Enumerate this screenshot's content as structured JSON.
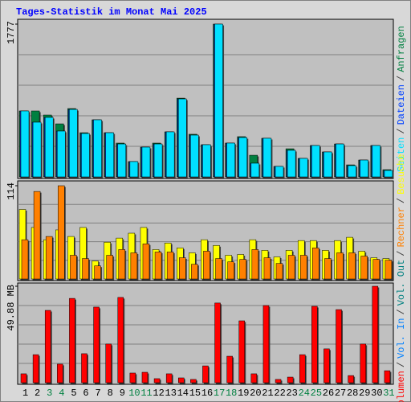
{
  "chart_data": [
    {
      "type": "bar",
      "title": "Tages-Statistik im Monat Mai 2025",
      "legend_separator": "/",
      "ylim": [
        0,
        1777
      ],
      "yticks": [
        1777
      ],
      "series": [
        {
          "name": "Anfragen",
          "color": "#008040",
          "values": [
            767,
            767,
            720,
            617,
            795,
            514,
            664,
            514,
            393,
            178,
            346,
            393,
            524,
            916,
            496,
            374,
            1777,
            393,
            468,
            252,
            449,
            122,
            327,
            215,
            365,
            290,
            383,
            140,
            196,
            365,
            84
          ]
        },
        {
          "name": "Dateien",
          "color": "#0040ff",
          "values": [
            767,
            636,
            692,
            533,
            785,
            505,
            664,
            514,
            383,
            178,
            346,
            383,
            524,
            907,
            486,
            374,
            1777,
            393,
            458,
            159,
            449,
            122,
            309,
            215,
            365,
            290,
            383,
            131,
            196,
            365,
            75
          ]
        },
        {
          "name": "Seiten",
          "color": "#00e0ff",
          "values": [
            767,
            636,
            692,
            533,
            785,
            505,
            664,
            514,
            383,
            178,
            346,
            383,
            524,
            907,
            486,
            374,
            1777,
            393,
            458,
            159,
            449,
            122,
            309,
            215,
            365,
            290,
            383,
            131,
            196,
            365,
            75
          ]
        }
      ]
    },
    {
      "type": "bar",
      "ylim": [
        0,
        114
      ],
      "yticks": [
        114
      ],
      "series": [
        {
          "name": "Besuche",
          "color": "#ffff00",
          "values": [
            85,
            63,
            48,
            60,
            52,
            63,
            22,
            45,
            50,
            56,
            63,
            36,
            44,
            38,
            32,
            48,
            41,
            29,
            30,
            48,
            35,
            27,
            35,
            47,
            47,
            35,
            47,
            51,
            34,
            26,
            25
          ]
        },
        {
          "name": "Rechner",
          "color": "#ff8000",
          "values": [
            48,
            107,
            52,
            114,
            29,
            25,
            16,
            29,
            36,
            32,
            43,
            33,
            33,
            26,
            18,
            34,
            25,
            21,
            24,
            36,
            26,
            19,
            29,
            29,
            38,
            25,
            32,
            32,
            28,
            24,
            23
          ]
        }
      ]
    },
    {
      "type": "bar",
      "ylim": [
        0,
        49.88
      ],
      "yticks": [
        {
          "value": 49.88,
          "label": "49.88 MB"
        }
      ],
      "categories": [
        "1",
        "2",
        "3",
        "4",
        "5",
        "6",
        "7",
        "8",
        "9",
        "10",
        "11",
        "12",
        "13",
        "14",
        "15",
        "16",
        "17",
        "18",
        "19",
        "20",
        "21",
        "22",
        "23",
        "24",
        "25",
        "26",
        "27",
        "28",
        "29",
        "30",
        "31"
      ],
      "category_colors": [
        "#000000",
        "#000000",
        "#008040",
        "#008040",
        "#000000",
        "#000000",
        "#000000",
        "#000000",
        "#000000",
        "#008040",
        "#008040",
        "#000000",
        "#000000",
        "#000000",
        "#000000",
        "#000000",
        "#008040",
        "#008040",
        "#000000",
        "#000000",
        "#000000",
        "#000000",
        "#000000",
        "#008040",
        "#008040",
        "#000000",
        "#000000",
        "#000000",
        "#000000",
        "#000000",
        "#008040"
      ],
      "series": [
        {
          "name": "Volumen",
          "color": "#ff0000",
          "values": [
            4.6,
            14.5,
            37.4,
            9.6,
            43.6,
            15.0,
            39.1,
            20.0,
            44.1,
            5.0,
            5.4,
            2.1,
            4.6,
            2.5,
            1.7,
            8.7,
            41.2,
            13.7,
            32.0,
            4.6,
            39.9,
            1.7,
            2.9,
            14.5,
            39.5,
            17.5,
            37.8,
            3.7,
            20.0,
            49.88,
            6.2
          ]
        },
        {
          "name": "Vol. In",
          "color": "#0080ff",
          "values": [
            null,
            null,
            null,
            null,
            null,
            null,
            null,
            null,
            null,
            null,
            null,
            null,
            null,
            null,
            null,
            null,
            null,
            null,
            null,
            null,
            null,
            null,
            null,
            null,
            null,
            null,
            null,
            null,
            null,
            null,
            null
          ]
        },
        {
          "name": "Vol. Out",
          "color": "#008080",
          "values": [
            null,
            null,
            null,
            null,
            null,
            null,
            null,
            null,
            null,
            null,
            null,
            null,
            null,
            null,
            null,
            null,
            null,
            null,
            null,
            null,
            null,
            null,
            null,
            null,
            null,
            null,
            null,
            null,
            null,
            null,
            null
          ]
        }
      ]
    }
  ]
}
